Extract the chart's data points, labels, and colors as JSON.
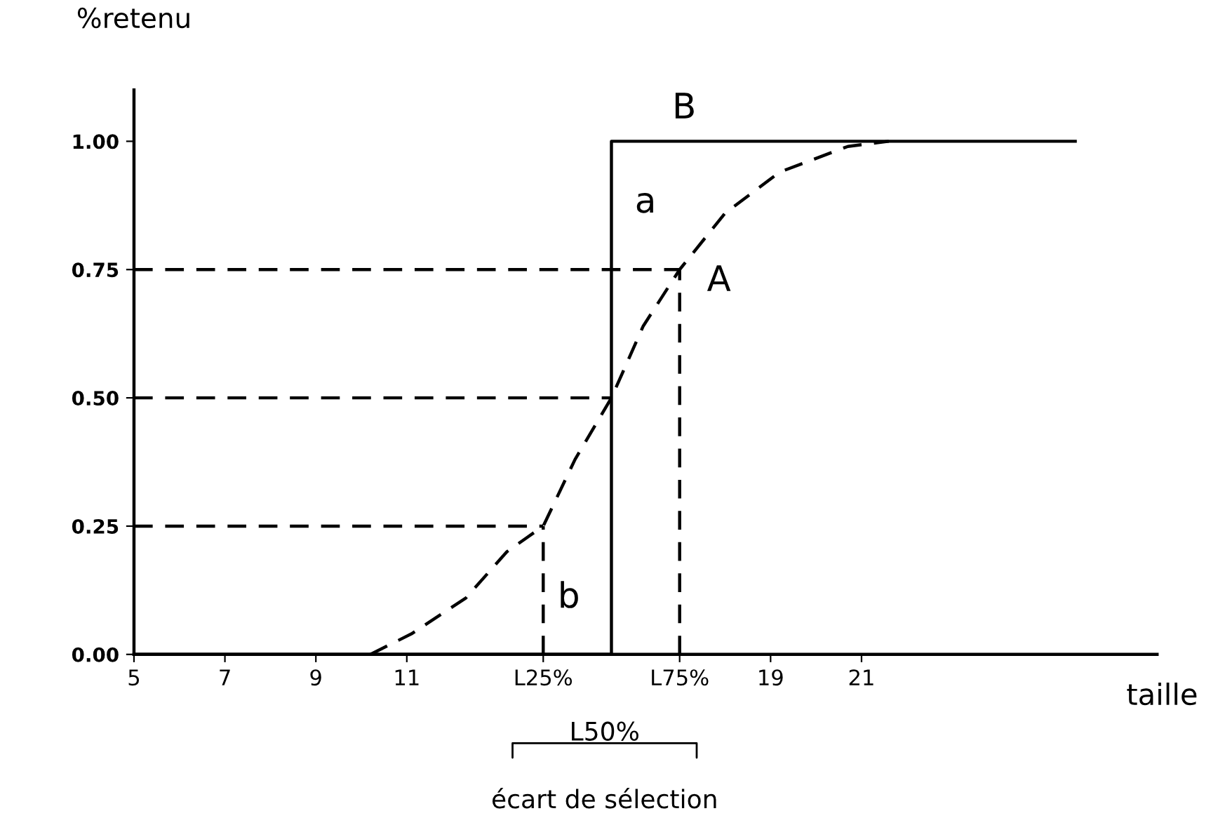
{
  "chart_data": {
    "type": "line",
    "xlabel": "taille",
    "ylabel": "%retenu",
    "xlim": [
      5,
      27.5
    ],
    "ylim": [
      0,
      1.1
    ],
    "xticks": [
      5,
      7,
      9,
      11,
      {
        "value": 14.0,
        "label": "L25%"
      },
      {
        "value": 17.0,
        "label": "L75%"
      },
      19,
      21
    ],
    "yticks": [
      {
        "value": 0,
        "label": "0.00"
      },
      {
        "value": 0.25,
        "label": "0.25"
      },
      {
        "value": 0.5,
        "label": "0.50"
      },
      {
        "value": 0.75,
        "label": "0.75"
      },
      {
        "value": 1,
        "label": "1.00"
      }
    ],
    "grid": false,
    "legend": false,
    "series": [
      {
        "name": "B",
        "color": "#000000",
        "line_style": "solid",
        "x": [
          5,
          15.5,
          15.5,
          25.7
        ],
        "values": [
          0,
          0,
          1,
          1
        ]
      },
      {
        "name": "A",
        "color": "#000000",
        "line_style": "dashed",
        "x": [
          10.2,
          11.1,
          12.3,
          13.2,
          14.0,
          14.7,
          15.5,
          16.2,
          17.0,
          18.0,
          19.2,
          20.7,
          21.6
        ],
        "values": [
          0,
          0.04,
          0.11,
          0.2,
          0.25,
          0.38,
          0.5,
          0.64,
          0.75,
          0.86,
          0.94,
          0.99,
          1.0
        ]
      },
      {
        "color": "#000000",
        "line_style": "dashed",
        "x": [
          5,
          14.0
        ],
        "values": [
          0.25,
          0.25
        ]
      },
      {
        "color": "#000000",
        "line_style": "dashed",
        "x": [
          5,
          15.5
        ],
        "values": [
          0.5,
          0.5
        ]
      },
      {
        "color": "#000000",
        "line_style": "dashed",
        "x": [
          5,
          17.0
        ],
        "values": [
          0.75,
          0.75
        ]
      },
      {
        "color": "#000000",
        "line_style": "dashed",
        "x": [
          14.0,
          14.0
        ],
        "values": [
          0,
          0.25
        ]
      },
      {
        "color": "#000000",
        "line_style": "dashed",
        "x": [
          17.0,
          17.0
        ],
        "values": [
          0,
          0.75
        ]
      }
    ],
    "annotations": [
      "a",
      "b",
      "L50%",
      "écart de sélection"
    ]
  }
}
